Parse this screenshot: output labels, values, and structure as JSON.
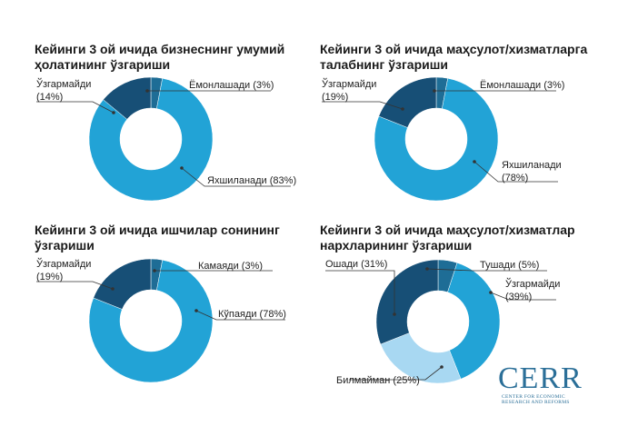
{
  "colors": {
    "dark": "#174f76",
    "mid": "#1e6d96",
    "light": "#22a3d6",
    "pale": "#a8d8f2",
    "line": "#333333"
  },
  "chart_data": [
    {
      "type": "pie",
      "title": "Кейинги 3 ой ичида бизнеснинг умумий ҳолатининг ўзгариши",
      "title_lines": [
        "Кейинги 3 ой ичида бизнеснинг умумий",
        "ҳолатининг ўзгариши"
      ],
      "slices": [
        {
          "label": "Ёмонлашади (3%)",
          "value": 3,
          "color": "#1e6d96"
        },
        {
          "label": "Яхшиланади (83%)",
          "value": 83,
          "color": "#22a3d6"
        },
        {
          "label": "Ўзгармайди (14%)",
          "label_lines": [
            "Ўзгармайди",
            "(14%)"
          ],
          "value": 14,
          "color": "#174f76"
        }
      ]
    },
    {
      "type": "pie",
      "title": "Кейинги 3 ой ичида маҳсулот/хизматларга талабнинг ўзгариши",
      "title_lines": [
        "Кейинги 3 ой ичида маҳсулот/хизматларга",
        "талабнинг ўзгариши"
      ],
      "slices": [
        {
          "label": "Ёмонлашади (3%)",
          "value": 3,
          "color": "#1e6d96"
        },
        {
          "label": "Яхшиланади (78%)",
          "label_lines": [
            "Яхшиланади",
            "(78%)"
          ],
          "value": 78,
          "color": "#22a3d6"
        },
        {
          "label": "Ўзгармайди (19%)",
          "label_lines": [
            "Ўзгармайди",
            "(19%)"
          ],
          "value": 19,
          "color": "#174f76"
        }
      ]
    },
    {
      "type": "pie",
      "title": "Кейинги 3 ой ичида ишчилар сонининг ўзгариши",
      "title_lines": [
        "Кейинги 3 ой ичида ишчилар сонининг",
        "ўзгариши"
      ],
      "slices": [
        {
          "label": "Камаяди (3%)",
          "value": 3,
          "color": "#1e6d96"
        },
        {
          "label": "Кўпаяди (78%)",
          "value": 78,
          "color": "#22a3d6"
        },
        {
          "label": "Ўзгармайди (19%)",
          "label_lines": [
            "Ўзгармайди",
            "(19%)"
          ],
          "value": 19,
          "color": "#174f76"
        }
      ]
    },
    {
      "type": "pie",
      "title": "Кейинги 3 ой ичида маҳсулот/хизматлар нархларининг ўзгариши",
      "title_lines": [
        "Кейинги 3 ой ичида маҳсулот/хизматлар",
        "нархларининг ўзгариши"
      ],
      "slices": [
        {
          "label": "Тушади (5%)",
          "value": 5,
          "color": "#1e6d96"
        },
        {
          "label": "Ўзгармайди (39%)",
          "label_lines": [
            "Ўзгармайди",
            "(39%)"
          ],
          "value": 39,
          "color": "#22a3d6"
        },
        {
          "label": "Билмайман (25%)",
          "value": 25,
          "color": "#a8d8f2"
        },
        {
          "label": "Ошади (31%)",
          "value": 31,
          "color": "#174f76"
        }
      ]
    }
  ],
  "logo": {
    "name": "CERR",
    "sub_lines": [
      "CENTER FOR ECONOMIC",
      "RESEARCH AND REFORMS"
    ]
  }
}
